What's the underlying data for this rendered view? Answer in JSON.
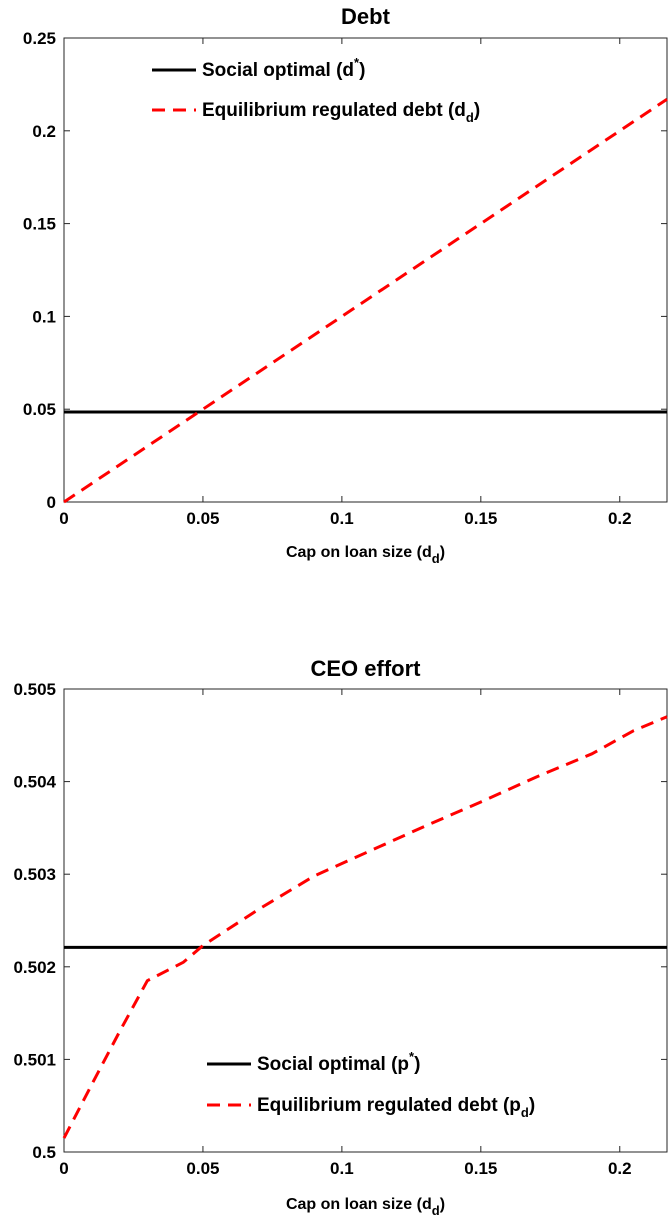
{
  "chart_data": [
    {
      "type": "line",
      "title": "Debt",
      "xlabel": {
        "main": "Cap on loan size (d",
        "sub": "d",
        "end": ")"
      },
      "ylabel": "",
      "xlim": [
        0,
        0.217
      ],
      "ylim": [
        0,
        0.25
      ],
      "x_ticks": [
        0,
        0.05,
        0.1,
        0.15,
        0.2
      ],
      "x_tick_labels": [
        "0",
        "0.05",
        "0.1",
        "0.15",
        "0.2"
      ],
      "y_ticks": [
        0,
        0.05,
        0.1,
        0.15,
        0.2,
        0.25
      ],
      "y_tick_labels": [
        "0",
        "0.05",
        "0.1",
        "0.15",
        "0.2",
        "0.25"
      ],
      "grid": false,
      "legend_position": "top",
      "series": [
        {
          "name": {
            "main": "Social optimal (d",
            "sup": "*",
            "end": ")"
          },
          "style": "solid",
          "color": "#000000",
          "x": [
            0,
            0.217
          ],
          "y": [
            0.0485,
            0.0485
          ]
        },
        {
          "name": {
            "main": "Equilibrium regulated debt (d",
            "sub": "d",
            "end": ")"
          },
          "style": "dashed",
          "color": "#ff0000",
          "x": [
            0,
            0.217
          ],
          "y": [
            0,
            0.217
          ]
        }
      ]
    },
    {
      "type": "line",
      "title": "CEO effort",
      "xlabel": {
        "main": "Cap on loan size (d",
        "sub": "d",
        "end": ")"
      },
      "ylabel": "",
      "xlim": [
        0,
        0.217
      ],
      "ylim": [
        0.5,
        0.505
      ],
      "x_ticks": [
        0,
        0.05,
        0.1,
        0.15,
        0.2
      ],
      "x_tick_labels": [
        "0",
        "0.05",
        "0.1",
        "0.15",
        "0.2"
      ],
      "y_ticks": [
        0.5,
        0.501,
        0.502,
        0.503,
        0.504,
        0.505
      ],
      "y_tick_labels": [
        "0.5",
        "0.501",
        "0.502",
        "0.503",
        "0.504",
        "0.505"
      ],
      "grid": false,
      "legend_position": "bottom-right",
      "series": [
        {
          "name": {
            "main": "Social optimal (p",
            "sup": "*",
            "end": ")"
          },
          "style": "solid",
          "color": "#000000",
          "x": [
            0,
            0.217
          ],
          "y": [
            0.50221,
            0.50221
          ]
        },
        {
          "name": {
            "main": "Equilibrium regulated debt (p",
            "sub": "d",
            "end": ")"
          },
          "style": "dashed",
          "color": "#ff0000",
          "x": [
            0,
            0.01,
            0.02,
            0.03,
            0.043,
            0.05,
            0.07,
            0.09,
            0.11,
            0.13,
            0.15,
            0.17,
            0.19,
            0.205,
            0.217
          ],
          "y": [
            0.50015,
            0.50073,
            0.5013,
            0.50185,
            0.50205,
            0.50223,
            0.50262,
            0.50298,
            0.50325,
            0.50352,
            0.50378,
            0.50405,
            0.5043,
            0.50455,
            0.5047
          ]
        }
      ]
    }
  ]
}
